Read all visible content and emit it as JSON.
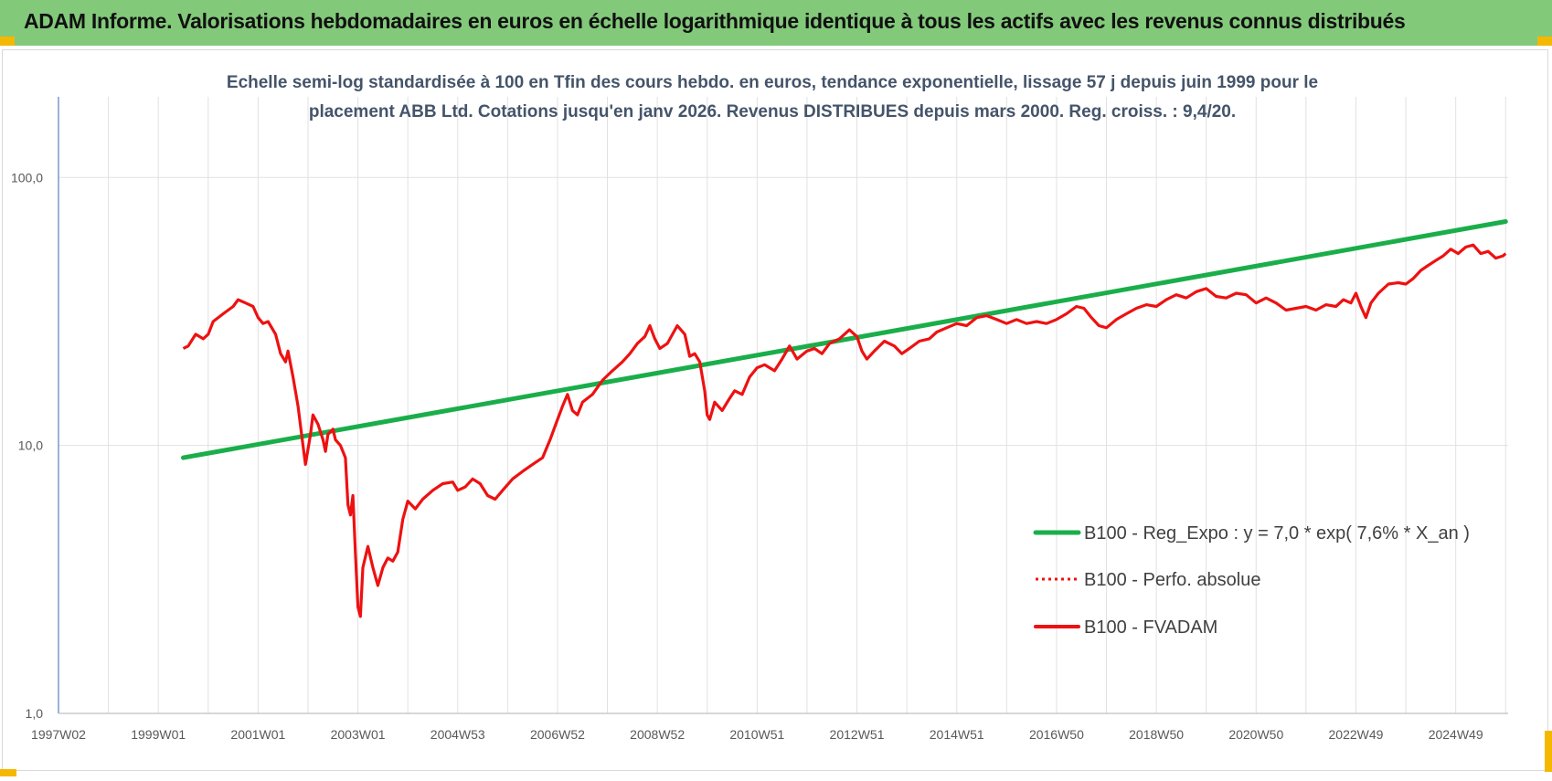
{
  "header": {
    "banner_title": "ADAM Informe. Valorisations hebdomadaires en euros en échelle logarithmique identique à tous les actifs avec les revenus connus distribués"
  },
  "colors": {
    "banner": "#82c97a",
    "trend": "#1aae4a",
    "fvadam": "#ee1111",
    "perfo": "#ee1111",
    "grid": "#e1e1e1",
    "corner": "#f5b800"
  },
  "chart_data": {
    "type": "line",
    "title": [
      "Echelle semi-log standardisée à 100 en Tfin des cours hebdo. en euros, tendance exponentielle, lissage 57 j depuis juin 1999 pour le",
      "placement ABB Ltd. Cotations jusqu'en janv 2026. Revenus DISTRIBUES depuis mars 2000. Reg. croiss. : 9,4/20."
    ],
    "y_scale": "log",
    "ylim": [
      1,
      200
    ],
    "y_ticks": [
      {
        "value": 1,
        "label": "1,0"
      },
      {
        "value": 10,
        "label": "10,0"
      },
      {
        "value": 100,
        "label": "100,0"
      }
    ],
    "x_range": [
      1997.0,
      2026.0
    ],
    "x_ticks": [
      {
        "value": 1997.0,
        "label": "1997W02"
      },
      {
        "value": 1999.0,
        "label": "1999W01"
      },
      {
        "value": 2001.0,
        "label": "2001W01"
      },
      {
        "value": 2003.0,
        "label": "2003W01"
      },
      {
        "value": 2005.0,
        "label": "2004W53"
      },
      {
        "value": 2007.0,
        "label": "2006W52"
      },
      {
        "value": 2009.0,
        "label": "2008W52"
      },
      {
        "value": 2011.0,
        "label": "2010W51"
      },
      {
        "value": 2013.0,
        "label": "2012W51"
      },
      {
        "value": 2015.0,
        "label": "2014W51"
      },
      {
        "value": 2017.0,
        "label": "2016W50"
      },
      {
        "value": 2019.0,
        "label": "2018W50"
      },
      {
        "value": 2021.0,
        "label": "2020W50"
      },
      {
        "value": 2023.0,
        "label": "2022W49"
      },
      {
        "value": 2025.0,
        "label": "2024W49"
      }
    ],
    "grid": true,
    "legend_position": "bottom-right",
    "series": [
      {
        "name": "B100 - Reg_Expo : y = 7,0 * exp( 7,6% *  X_an )",
        "style": "solid-thick",
        "color": "#1aae4a",
        "points": [
          [
            1999.5,
            9.0
          ],
          [
            2026.0,
            68.5
          ]
        ]
      },
      {
        "name": "B100 - Perfo. absolue",
        "style": "dotted",
        "color": "#ee1111",
        "points": []
      },
      {
        "name": "B100 - FVADAM",
        "style": "solid",
        "color": "#ee1111",
        "points": [
          [
            1999.5,
            23
          ],
          [
            1999.6,
            23.5
          ],
          [
            1999.75,
            26
          ],
          [
            1999.9,
            25
          ],
          [
            2000.0,
            26
          ],
          [
            2000.1,
            29
          ],
          [
            2000.3,
            31
          ],
          [
            2000.5,
            33
          ],
          [
            2000.6,
            35
          ],
          [
            2000.75,
            34
          ],
          [
            2000.9,
            33
          ],
          [
            2001.0,
            30
          ],
          [
            2001.1,
            28.5
          ],
          [
            2001.2,
            29
          ],
          [
            2001.35,
            26
          ],
          [
            2001.45,
            22
          ],
          [
            2001.55,
            20.5
          ],
          [
            2001.6,
            22.5
          ],
          [
            2001.7,
            18
          ],
          [
            2001.8,
            14
          ],
          [
            2001.9,
            10
          ],
          [
            2001.95,
            8.5
          ],
          [
            2002.05,
            11
          ],
          [
            2002.1,
            13
          ],
          [
            2002.2,
            12
          ],
          [
            2002.3,
            10.5
          ],
          [
            2002.35,
            9.5
          ],
          [
            2002.4,
            11
          ],
          [
            2002.5,
            11.5
          ],
          [
            2002.55,
            10.5
          ],
          [
            2002.65,
            10
          ],
          [
            2002.75,
            9
          ],
          [
            2002.8,
            6
          ],
          [
            2002.85,
            5.5
          ],
          [
            2002.9,
            6.5
          ],
          [
            2002.95,
            4.0
          ],
          [
            2003.0,
            2.5
          ],
          [
            2003.05,
            2.3
          ],
          [
            2003.1,
            3.5
          ],
          [
            2003.2,
            4.2
          ],
          [
            2003.3,
            3.5
          ],
          [
            2003.4,
            3.0
          ],
          [
            2003.5,
            3.5
          ],
          [
            2003.6,
            3.8
          ],
          [
            2003.7,
            3.7
          ],
          [
            2003.8,
            4.0
          ],
          [
            2003.9,
            5.3
          ],
          [
            2004.0,
            6.2
          ],
          [
            2004.15,
            5.8
          ],
          [
            2004.3,
            6.3
          ],
          [
            2004.5,
            6.8
          ],
          [
            2004.7,
            7.2
          ],
          [
            2004.9,
            7.3
          ],
          [
            2005.0,
            6.8
          ],
          [
            2005.15,
            7.0
          ],
          [
            2005.3,
            7.5
          ],
          [
            2005.45,
            7.2
          ],
          [
            2005.6,
            6.5
          ],
          [
            2005.75,
            6.3
          ],
          [
            2005.9,
            6.8
          ],
          [
            2006.1,
            7.5
          ],
          [
            2006.3,
            8.0
          ],
          [
            2006.5,
            8.5
          ],
          [
            2006.7,
            9.0
          ],
          [
            2006.85,
            10.5
          ],
          [
            2007.0,
            12.5
          ],
          [
            2007.1,
            14
          ],
          [
            2007.2,
            15.5
          ],
          [
            2007.3,
            13.5
          ],
          [
            2007.4,
            13
          ],
          [
            2007.5,
            14.5
          ],
          [
            2007.7,
            15.5
          ],
          [
            2007.9,
            17.5
          ],
          [
            2008.1,
            19
          ],
          [
            2008.3,
            20.5
          ],
          [
            2008.45,
            22
          ],
          [
            2008.6,
            24
          ],
          [
            2008.75,
            25.5
          ],
          [
            2008.85,
            28
          ],
          [
            2008.95,
            25
          ],
          [
            2009.05,
            23
          ],
          [
            2009.2,
            24
          ],
          [
            2009.4,
            28
          ],
          [
            2009.55,
            26
          ],
          [
            2009.65,
            21.5
          ],
          [
            2009.75,
            22
          ],
          [
            2009.85,
            20.5
          ],
          [
            2009.95,
            16
          ],
          [
            2010.0,
            13
          ],
          [
            2010.05,
            12.5
          ],
          [
            2010.15,
            14.5
          ],
          [
            2010.3,
            13.5
          ],
          [
            2010.45,
            15
          ],
          [
            2010.55,
            16
          ],
          [
            2010.7,
            15.5
          ],
          [
            2010.85,
            18
          ],
          [
            2011.0,
            19.5
          ],
          [
            2011.15,
            20
          ],
          [
            2011.35,
            19
          ],
          [
            2011.5,
            21
          ],
          [
            2011.65,
            23.5
          ],
          [
            2011.8,
            21
          ],
          [
            2012.0,
            22.5
          ],
          [
            2012.15,
            23
          ],
          [
            2012.3,
            22
          ],
          [
            2012.45,
            24
          ],
          [
            2012.65,
            25
          ],
          [
            2012.85,
            27
          ],
          [
            2013.0,
            25.5
          ],
          [
            2013.1,
            22.5
          ],
          [
            2013.2,
            21
          ],
          [
            2013.35,
            22.5
          ],
          [
            2013.55,
            24.5
          ],
          [
            2013.75,
            23.5
          ],
          [
            2013.9,
            22
          ],
          [
            2014.05,
            23
          ],
          [
            2014.25,
            24.5
          ],
          [
            2014.45,
            25
          ],
          [
            2014.6,
            26.5
          ],
          [
            2014.8,
            27.5
          ],
          [
            2015.0,
            28.5
          ],
          [
            2015.2,
            28
          ],
          [
            2015.4,
            30
          ],
          [
            2015.6,
            30.5
          ],
          [
            2015.8,
            29.5
          ],
          [
            2016.0,
            28.5
          ],
          [
            2016.2,
            29.5
          ],
          [
            2016.4,
            28.5
          ],
          [
            2016.6,
            29
          ],
          [
            2016.8,
            28.5
          ],
          [
            2017.0,
            29.5
          ],
          [
            2017.2,
            31
          ],
          [
            2017.4,
            33
          ],
          [
            2017.55,
            32.5
          ],
          [
            2017.7,
            30
          ],
          [
            2017.85,
            28
          ],
          [
            2018.0,
            27.5
          ],
          [
            2018.2,
            29.5
          ],
          [
            2018.4,
            31
          ],
          [
            2018.6,
            32.5
          ],
          [
            2018.8,
            33.5
          ],
          [
            2019.0,
            33
          ],
          [
            2019.2,
            35
          ],
          [
            2019.4,
            36.5
          ],
          [
            2019.6,
            35.5
          ],
          [
            2019.8,
            37.5
          ],
          [
            2020.0,
            38.5
          ],
          [
            2020.2,
            36
          ],
          [
            2020.4,
            35.5
          ],
          [
            2020.6,
            37
          ],
          [
            2020.8,
            36.5
          ],
          [
            2021.0,
            34
          ],
          [
            2021.2,
            35.5
          ],
          [
            2021.4,
            34
          ],
          [
            2021.6,
            32
          ],
          [
            2021.8,
            32.5
          ],
          [
            2022.0,
            33
          ],
          [
            2022.2,
            32
          ],
          [
            2022.4,
            33.5
          ],
          [
            2022.6,
            33
          ],
          [
            2022.75,
            35
          ],
          [
            2022.9,
            34
          ],
          [
            2023.0,
            37
          ],
          [
            2023.1,
            33
          ],
          [
            2023.2,
            30
          ],
          [
            2023.3,
            34
          ],
          [
            2023.45,
            37
          ],
          [
            2023.65,
            40
          ],
          [
            2023.85,
            40.5
          ],
          [
            2024.0,
            40
          ],
          [
            2024.15,
            42
          ],
          [
            2024.3,
            45
          ],
          [
            2024.45,
            47
          ],
          [
            2024.6,
            49
          ],
          [
            2024.75,
            51
          ],
          [
            2024.9,
            54
          ],
          [
            2025.05,
            52
          ],
          [
            2025.2,
            55
          ],
          [
            2025.35,
            56
          ],
          [
            2025.5,
            52
          ],
          [
            2025.65,
            53
          ],
          [
            2025.8,
            50
          ],
          [
            2025.95,
            51
          ],
          [
            2026.0,
            52
          ]
        ]
      }
    ]
  }
}
